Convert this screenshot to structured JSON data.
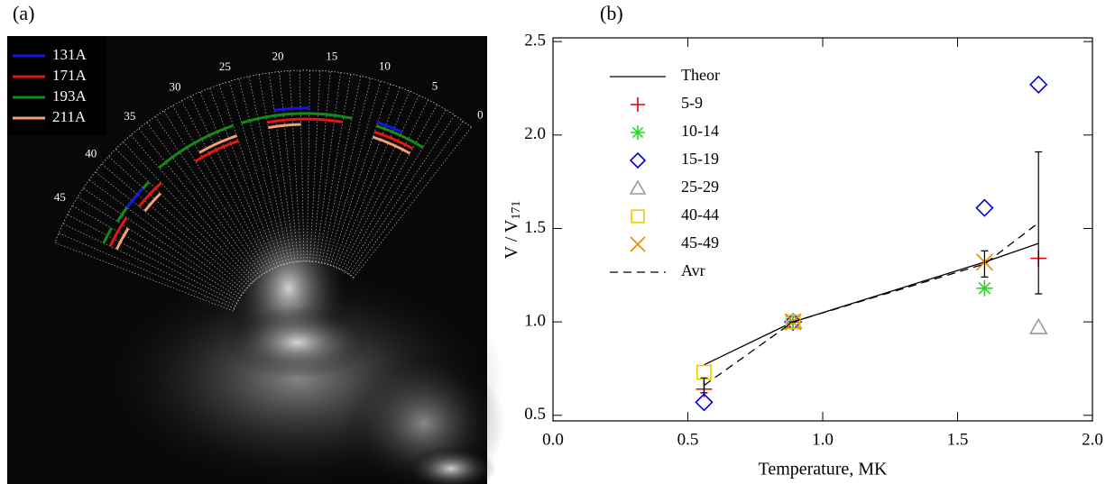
{
  "panel_labels": [
    "(a)",
    "(b)"
  ],
  "image_panel": {
    "legend": [
      {
        "label": "131A",
        "color": "#1414e6"
      },
      {
        "label": "171A",
        "color": "#e61414"
      },
      {
        "label": "193A",
        "color": "#148c14"
      },
      {
        "label": "211A",
        "color": "#f4a070"
      }
    ],
    "angle_labels": [
      "0",
      "5",
      "10",
      "15",
      "20",
      "25",
      "30",
      "35",
      "40",
      "45"
    ]
  },
  "chart_data": {
    "type": "scatter",
    "xlabel": "Temperature, MK",
    "ylabel": "V / V",
    "ylabel_sub": "171",
    "xlim": [
      0,
      2
    ],
    "ylim": [
      0.47,
      2.52
    ],
    "xticks": [
      {
        "value": 0,
        "label": "0.0"
      },
      0.5,
      {
        "value": 1,
        "label": "1.0"
      },
      1.5,
      {
        "value": 2,
        "label": "2.0"
      }
    ],
    "yticks": [
      0.5,
      {
        "value": 1,
        "label": "1.0"
      },
      1.5,
      {
        "value": 2,
        "label": "2.0"
      },
      2.5
    ],
    "series": [
      {
        "name": "Theor",
        "color": "#000000",
        "line": "solid",
        "x": [
          0.56,
          0.89,
          1.6,
          1.8
        ],
        "values": [
          0.77,
          1.0,
          1.32,
          1.42
        ]
      },
      {
        "name": "5-9",
        "color": "#e60000",
        "marker": "plus",
        "x": [
          0.56,
          0.89,
          1.8
        ],
        "values": [
          0.64,
          1.0,
          1.34
        ]
      },
      {
        "name": "10-14",
        "color": "#22dd22",
        "marker": "star",
        "x": [
          0.89,
          1.6
        ],
        "values": [
          1.0,
          1.18
        ]
      },
      {
        "name": "15-19",
        "color": "#0000dd",
        "marker": "diamond",
        "x": [
          0.56,
          0.89,
          1.6,
          1.8
        ],
        "values": [
          0.57,
          1.0,
          1.61,
          2.27
        ]
      },
      {
        "name": "25-29",
        "color": "#999999",
        "marker": "triangle",
        "x": [
          0.89,
          1.8
        ],
        "values": [
          1.0,
          0.97
        ]
      },
      {
        "name": "40-44",
        "color": "#eecc00",
        "marker": "square",
        "x": [
          0.56,
          0.89
        ],
        "values": [
          0.73,
          1.0
        ]
      },
      {
        "name": "45-49",
        "color": "#ee8800",
        "marker": "cross",
        "x": [
          0.89,
          1.6
        ],
        "values": [
          1.0,
          1.32
        ]
      },
      {
        "name": "Avr",
        "color": "#000000",
        "line": "dashed",
        "x": [
          0.56,
          0.89,
          1.6,
          1.8
        ],
        "values": [
          0.66,
          1.0,
          1.31,
          1.53
        ],
        "errors": [
          0.04,
          0,
          0.07,
          0.38
        ]
      }
    ]
  }
}
